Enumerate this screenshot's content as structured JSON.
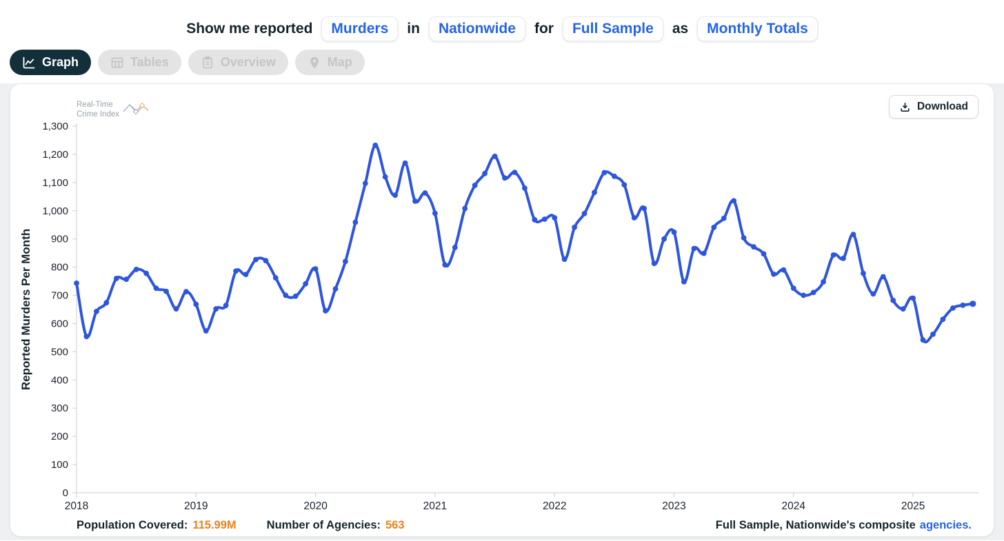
{
  "query": {
    "prefix": "Show me reported",
    "metric": "Murders",
    "conn1": "in",
    "geography": "Nationwide",
    "conn2": "for",
    "sample": "Full Sample",
    "conn3": "as",
    "granularity": "Monthly Totals"
  },
  "tabs": [
    {
      "label": "Graph",
      "icon": "chart-line-icon",
      "active": true
    },
    {
      "label": "Tables",
      "icon": "table-icon",
      "active": false
    },
    {
      "label": "Overview",
      "icon": "clipboard-icon",
      "active": false
    },
    {
      "label": "Map",
      "icon": "map-pin-icon",
      "active": false
    }
  ],
  "watermark": {
    "line1": "Real-Time",
    "line2": "Crime Index"
  },
  "download": {
    "label": "Download"
  },
  "footer": {
    "population_label": "Population Covered:",
    "population_value": "115.99M",
    "agencies_label": "Number of Agencies:",
    "agencies_value": "563",
    "right_text": "Full Sample, Nationwide's composite",
    "right_link": "agencies."
  },
  "colors": {
    "line": "#2d55dd",
    "accent_blue": "#2563eb",
    "orange": "#e8821f",
    "tab_active_bg": "#132f3a",
    "axis": "#c9ced3",
    "tick_text": "#1a202c"
  },
  "chart_data": {
    "type": "line",
    "title": "",
    "xlabel": "",
    "ylabel": "Reported Murders Per Month",
    "ylim": [
      0,
      1300
    ],
    "ytick_step": 100,
    "grid": false,
    "legend": false,
    "x_years": [
      2018,
      2019,
      2020,
      2021,
      2022,
      2023,
      2024,
      2025
    ],
    "start_year": 2018,
    "start_month": 1,
    "series": [
      {
        "name": "Reported Murders Per Month",
        "values": [
          743,
          554,
          643,
          674,
          760,
          757,
          792,
          778,
          725,
          714,
          652,
          713,
          668,
          574,
          652,
          664,
          786,
          774,
          827,
          823,
          762,
          700,
          697,
          741,
          794,
          645,
          723,
          820,
          959,
          1097,
          1232,
          1120,
          1055,
          1169,
          1034,
          1063,
          991,
          808,
          870,
          1008,
          1090,
          1132,
          1193,
          1116,
          1136,
          1080,
          968,
          970,
          975,
          828,
          941,
          990,
          1065,
          1135,
          1122,
          1092,
          975,
          1008,
          813,
          900,
          924,
          748,
          866,
          849,
          941,
          973,
          1035,
          904,
          872,
          847,
          775,
          790,
          725,
          700,
          710,
          748,
          843,
          831,
          916,
          778,
          705,
          766,
          682,
          652,
          690,
          542,
          562,
          615,
          655,
          665,
          670
        ]
      }
    ]
  }
}
